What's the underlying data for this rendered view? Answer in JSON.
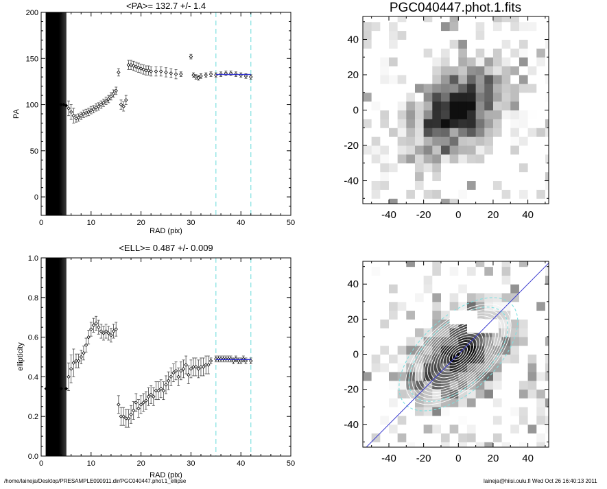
{
  "chart_data": [
    {
      "type": "scatter",
      "title": "<PA>= 132.7 +/-   1.4",
      "xlabel": "RAD (pix)",
      "ylabel": "PA",
      "xlim": [
        0,
        50
      ],
      "ylim": [
        -20,
        200
      ],
      "xticks": [
        "0",
        "10",
        "20",
        "30",
        "40",
        "50"
      ],
      "yticks": [
        "0",
        "50",
        "100",
        "150",
        "200"
      ],
      "fit_range": [
        35,
        42
      ],
      "fit_value": 132.7,
      "points": [
        [
          2,
          100
        ],
        [
          2.5,
          100
        ],
        [
          3,
          100
        ],
        [
          3.5,
          100
        ],
        [
          4,
          100
        ],
        [
          4.5,
          100
        ],
        [
          5,
          99
        ],
        [
          5.5,
          96
        ],
        [
          6,
          92
        ],
        [
          6.5,
          88
        ],
        [
          7,
          85
        ],
        [
          7.5,
          86
        ],
        [
          8,
          88
        ],
        [
          8.5,
          90
        ],
        [
          9,
          91
        ],
        [
          9.5,
          92
        ],
        [
          10,
          94
        ],
        [
          10.5,
          95
        ],
        [
          11,
          97
        ],
        [
          11.5,
          98
        ],
        [
          12,
          100
        ],
        [
          12.5,
          102
        ],
        [
          13,
          104
        ],
        [
          13.5,
          106
        ],
        [
          14,
          109
        ],
        [
          14.5,
          112
        ],
        [
          15,
          115
        ],
        [
          15.5,
          135
        ],
        [
          16,
          100
        ],
        [
          16.5,
          98
        ],
        [
          17,
          105
        ],
        [
          17.5,
          143
        ],
        [
          18,
          143
        ],
        [
          18.5,
          142
        ],
        [
          19,
          141
        ],
        [
          19.5,
          140
        ],
        [
          20,
          139
        ],
        [
          20.5,
          138
        ],
        [
          21,
          137
        ],
        [
          21.5,
          137
        ],
        [
          22,
          136
        ],
        [
          23,
          136
        ],
        [
          24,
          136
        ],
        [
          25,
          135
        ],
        [
          26,
          134
        ],
        [
          27,
          133
        ],
        [
          28,
          133
        ],
        [
          30,
          152
        ],
        [
          30.5,
          132
        ],
        [
          31,
          130
        ],
        [
          31.5,
          129
        ],
        [
          32,
          131
        ],
        [
          33,
          132
        ],
        [
          34,
          133
        ],
        [
          35,
          132
        ],
        [
          36,
          133
        ],
        [
          37,
          134
        ],
        [
          38,
          134
        ],
        [
          39,
          133
        ],
        [
          40,
          132
        ],
        [
          41,
          131
        ],
        [
          42,
          130
        ]
      ]
    },
    {
      "type": "scatter",
      "title": "<ELL>= 0.487 +/-  0.009",
      "xlabel": "RAD (pix)",
      "ylabel": "ellipticity",
      "xlim": [
        0,
        50
      ],
      "ylim": [
        0,
        1
      ],
      "xticks": [
        "0",
        "10",
        "20",
        "30",
        "40",
        "50"
      ],
      "yticks": [
        "0.0",
        "0.2",
        "0.4",
        "0.6",
        "0.8",
        "1.0"
      ],
      "fit_range": [
        35,
        42
      ],
      "fit_value": 0.487,
      "points": [
        [
          1,
          0.34
        ],
        [
          2,
          0.34
        ],
        [
          3,
          0.34
        ],
        [
          4,
          0.34
        ],
        [
          5,
          0.34
        ],
        [
          5.5,
          0.4
        ],
        [
          6,
          0.44
        ],
        [
          6.5,
          0.47
        ],
        [
          7,
          0.48
        ],
        [
          7.5,
          0.48
        ],
        [
          8,
          0.5
        ],
        [
          8.5,
          0.52
        ],
        [
          9,
          0.56
        ],
        [
          9.5,
          0.6
        ],
        [
          10,
          0.64
        ],
        [
          10.5,
          0.66
        ],
        [
          11,
          0.67
        ],
        [
          11.5,
          0.65
        ],
        [
          12,
          0.63
        ],
        [
          12.5,
          0.62
        ],
        [
          13,
          0.63
        ],
        [
          13.5,
          0.62
        ],
        [
          14,
          0.61
        ],
        [
          14.5,
          0.63
        ],
        [
          15,
          0.64
        ],
        [
          15.5,
          0.26
        ],
        [
          16,
          0.2
        ],
        [
          16.5,
          0.2
        ],
        [
          17,
          0.19
        ],
        [
          17.5,
          0.19
        ],
        [
          18,
          0.21
        ],
        [
          18.5,
          0.23
        ],
        [
          19,
          0.27
        ],
        [
          19.5,
          0.24
        ],
        [
          20,
          0.26
        ],
        [
          20.5,
          0.27
        ],
        [
          21,
          0.28
        ],
        [
          21.5,
          0.3
        ],
        [
          22,
          0.31
        ],
        [
          22.5,
          0.3
        ],
        [
          23,
          0.33
        ],
        [
          23.5,
          0.33
        ],
        [
          24,
          0.34
        ],
        [
          24.5,
          0.33
        ],
        [
          25,
          0.36
        ],
        [
          25.5,
          0.38
        ],
        [
          26,
          0.4
        ],
        [
          26.5,
          0.42
        ],
        [
          27,
          0.43
        ],
        [
          27.5,
          0.4
        ],
        [
          28,
          0.43
        ],
        [
          28.5,
          0.44
        ],
        [
          29,
          0.46
        ],
        [
          29.5,
          0.41
        ],
        [
          30,
          0.44
        ],
        [
          30.5,
          0.45
        ],
        [
          31,
          0.45
        ],
        [
          31.5,
          0.44
        ],
        [
          32,
          0.45
        ],
        [
          32.5,
          0.45
        ],
        [
          33,
          0.46
        ],
        [
          33.5,
          0.46
        ],
        [
          34,
          0.48
        ],
        [
          35,
          0.49
        ],
        [
          35.5,
          0.49
        ],
        [
          36,
          0.49
        ],
        [
          36.5,
          0.49
        ],
        [
          37,
          0.49
        ],
        [
          37.5,
          0.49
        ],
        [
          38,
          0.49
        ],
        [
          38.5,
          0.48
        ],
        [
          39,
          0.49
        ],
        [
          39.5,
          0.48
        ],
        [
          40,
          0.48
        ],
        [
          40.5,
          0.49
        ],
        [
          41,
          0.48
        ],
        [
          42,
          0.48
        ]
      ]
    },
    {
      "type": "heatmap",
      "title": "PGC040447.phot.1.fits",
      "xlim": [
        -55,
        52
      ],
      "ylim": [
        -53,
        53
      ],
      "xticks": [
        "-40",
        "-20",
        "0",
        "20",
        "40"
      ],
      "yticks": [
        "-40",
        "-20",
        "0",
        "20",
        "40"
      ],
      "center": [
        0,
        0
      ],
      "galaxy_pa_deg": 132.7,
      "galaxy_ell": 0.487
    },
    {
      "type": "heatmap",
      "title": "",
      "xlim": [
        -55,
        52
      ],
      "ylim": [
        -53,
        53
      ],
      "xticks": [
        "-40",
        "-20",
        "0",
        "20",
        "40"
      ],
      "yticks": [
        "-40",
        "-20",
        "0",
        "20",
        "40"
      ],
      "center": [
        0,
        0
      ],
      "overlay": "ellipse isophotes",
      "pa_line_deg": 45
    }
  ],
  "footer": {
    "left": "/home/laineja/Desktop/PRESAMPLE090911.dir/PGC040447.phot.1_ellipse",
    "right": "laineja@hiisi.oulu.fi  Wed Oct 26 16:40:13 2011"
  },
  "colors": {
    "fit": "#2a2ad0",
    "dashed": "#7fe0e0",
    "pa_line": "#3a3acf",
    "bar_region": "#000000"
  }
}
